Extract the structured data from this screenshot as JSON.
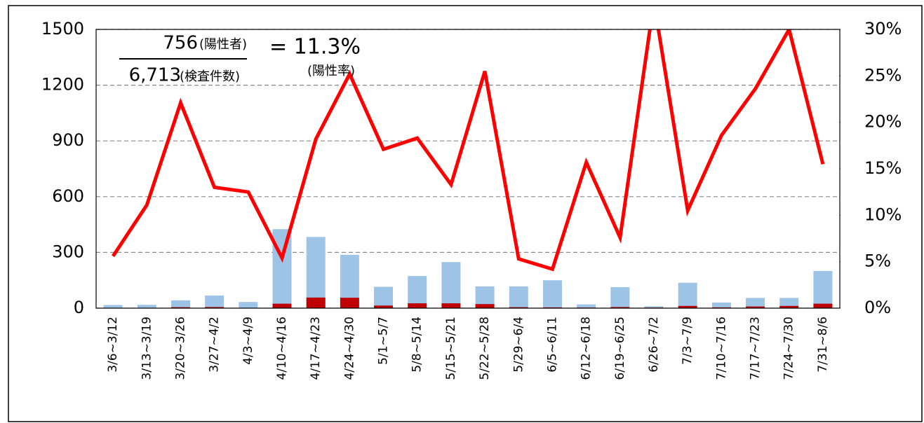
{
  "chart_data": {
    "type": "bar-line",
    "categories": [
      "3/6~3/12",
      "3/13~3/19",
      "3/20~3/26",
      "3/27~4/2",
      "4/3~4/9",
      "4/10~4/16",
      "4/17~4/23",
      "4/24~4/30",
      "5/1~5/7",
      "5/8~5/14",
      "5/15~5/21",
      "5/22~5/28",
      "5/29~6/4",
      "6/5~6/11",
      "6/12~6/18",
      "6/19~6/25",
      "6/26~7/2",
      "7/3~7/9",
      "7/10~7/16",
      "7/17~7/23",
      "7/24~7/30",
      "7/31~8/6"
    ],
    "series": [
      {
        "type": "bar",
        "color": "#9dc3e6",
        "values": [
          17,
          18,
          42,
          68,
          33,
          425,
          383,
          287,
          115,
          173,
          248,
          117,
          117,
          150,
          20,
          113,
          10,
          137,
          30,
          55,
          55,
          200
        ]
      },
      {
        "type": "bar",
        "color": "#c00000",
        "values": [
          1,
          1,
          5,
          6,
          2,
          24,
          57,
          56,
          14,
          26,
          26,
          22,
          5,
          4,
          3,
          6,
          3,
          12,
          4,
          9,
          12,
          24
        ]
      },
      {
        "type": "line",
        "axis": "y2",
        "color": "#ff0000",
        "values": [
          5.6,
          11.1,
          22.1,
          13.0,
          12.5,
          5.4,
          18.2,
          25.2,
          17.1,
          18.3,
          13.3,
          25.5,
          5.3,
          4.2,
          15.7,
          7.6,
          33,
          10.5,
          18.6,
          23.6,
          30,
          15.5
        ]
      }
    ],
    "ylim": [
      0,
      1500
    ],
    "yticks": [
      0,
      300,
      600,
      900,
      1200,
      1500
    ],
    "y2lim": [
      0,
      30
    ],
    "y2ticks": [
      {
        "value": 0,
        "label": "0%"
      },
      {
        "value": 5,
        "label": "5%"
      },
      {
        "value": 10,
        "label": "10%"
      },
      {
        "value": 15,
        "label": "15%"
      },
      {
        "value": 20,
        "label": "20%"
      },
      {
        "value": 25,
        "label": "25%"
      },
      {
        "value": 30,
        "label": "30%"
      }
    ],
    "grid": true,
    "annotation": {
      "positives": "756",
      "positives_label": "(陽性者)",
      "tests": "6,713",
      "tests_label": "(検査件数)",
      "rate": "= 11.3%",
      "rate_label": "(陽性率)"
    }
  }
}
